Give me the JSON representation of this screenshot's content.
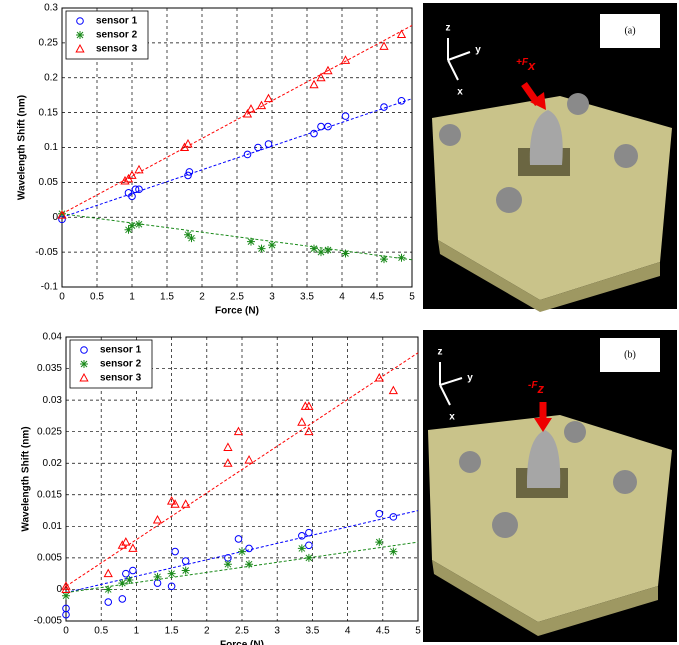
{
  "chart_data": [
    {
      "type": "scatter",
      "xlabel": "Force (N)",
      "ylabel": "Wavelength Shift (nm)",
      "xlim": [
        0,
        5
      ],
      "ylim": [
        -0.1,
        0.3
      ],
      "xticks": [
        0,
        0.5,
        1,
        1.5,
        2,
        2.5,
        3,
        3.5,
        4,
        4.5,
        5
      ],
      "yticks": [
        -0.1,
        -0.05,
        0,
        0.05,
        0.1,
        0.15,
        0.2,
        0.25,
        0.3
      ],
      "grid": true,
      "legend": "upper left",
      "series": [
        {
          "name": "sensor 1",
          "color": "#0000ff",
          "marker": "circle",
          "x": [
            0,
            0.95,
            1.0,
            1.05,
            1.1,
            1.8,
            1.82,
            2.65,
            2.8,
            2.95,
            3.6,
            3.7,
            3.8,
            4.05,
            4.6,
            4.85
          ],
          "values": [
            -0.003,
            0.035,
            0.03,
            0.04,
            0.04,
            0.06,
            0.065,
            0.09,
            0.1,
            0.105,
            0.12,
            0.13,
            0.13,
            0.145,
            0.158,
            0.167
          ],
          "trend": {
            "x": [
              0,
              5
            ],
            "values": [
              0,
              0.17
            ]
          }
        },
        {
          "name": "sensor 2",
          "color": "#1a8a1a",
          "marker": "star",
          "x": [
            0,
            0.95,
            1.0,
            1.1,
            1.8,
            1.85,
            2.7,
            2.85,
            3.0,
            3.6,
            3.7,
            3.8,
            4.05,
            4.6,
            4.85
          ],
          "values": [
            0.005,
            -0.018,
            -0.012,
            -0.01,
            -0.025,
            -0.03,
            -0.035,
            -0.045,
            -0.04,
            -0.045,
            -0.05,
            -0.047,
            -0.052,
            -0.06,
            -0.058
          ],
          "trend": {
            "x": [
              0,
              5
            ],
            "values": [
              0.005,
              -0.061
            ]
          }
        },
        {
          "name": "sensor 3",
          "color": "#ff0000",
          "marker": "triangle",
          "x": [
            0,
            0.9,
            0.95,
            1.0,
            1.1,
            1.75,
            1.8,
            2.65,
            2.7,
            2.85,
            2.95,
            3.6,
            3.7,
            3.8,
            4.05,
            4.6,
            4.85
          ],
          "values": [
            0.003,
            0.052,
            0.055,
            0.06,
            0.068,
            0.1,
            0.105,
            0.148,
            0.155,
            0.16,
            0.17,
            0.19,
            0.2,
            0.21,
            0.225,
            0.245,
            0.262
          ],
          "trend": {
            "x": [
              0,
              5
            ],
            "values": [
              0.005,
              0.275
            ]
          }
        }
      ]
    },
    {
      "type": "scatter",
      "xlabel": "Force (N)",
      "ylabel": "Wavelength Shift (nm)",
      "xlim": [
        0,
        5
      ],
      "ylim": [
        -0.005,
        0.04
      ],
      "xticks": [
        0,
        0.5,
        1,
        1.5,
        2,
        2.5,
        3,
        3.5,
        4,
        4.5,
        5
      ],
      "yticks": [
        -0.005,
        0,
        0.005,
        0.01,
        0.015,
        0.02,
        0.025,
        0.03,
        0.035,
        0.04
      ],
      "grid": true,
      "legend": "upper left",
      "series": [
        {
          "name": "sensor 1",
          "color": "#0000ff",
          "marker": "circle",
          "x": [
            0,
            0,
            0.6,
            0.8,
            0.85,
            0.95,
            1.3,
            1.5,
            1.55,
            1.7,
            2.3,
            2.45,
            2.6,
            3.35,
            3.45,
            3.45,
            4.45,
            4.65
          ],
          "values": [
            -0.004,
            -0.003,
            -0.002,
            -0.0015,
            0.0025,
            0.003,
            0.001,
            0.0005,
            0.006,
            0.0045,
            0.005,
            0.008,
            0.0065,
            0.0085,
            0.007,
            0.009,
            0.012,
            0.0115
          ],
          "trend": {
            "x": [
              0,
              5
            ],
            "values": [
              -0.0005,
              0.0125
            ]
          }
        },
        {
          "name": "sensor 2",
          "color": "#1a8a1a",
          "marker": "star",
          "x": [
            0,
            0.6,
            0.8,
            0.9,
            1.3,
            1.5,
            1.7,
            2.3,
            2.5,
            2.6,
            3.35,
            3.45,
            4.45,
            4.65
          ],
          "values": [
            -0.001,
            0,
            0.001,
            0.0015,
            0.002,
            0.0025,
            0.003,
            0.004,
            0.006,
            0.004,
            0.0065,
            0.005,
            0.0075,
            0.006
          ],
          "trend": {
            "x": [
              0,
              5
            ],
            "values": [
              -0.0005,
              0.0075
            ]
          }
        },
        {
          "name": "sensor 3",
          "color": "#ff0000",
          "marker": "triangle",
          "x": [
            0,
            0,
            0.6,
            0.8,
            0.85,
            0.95,
            1.3,
            1.5,
            1.55,
            1.7,
            2.3,
            2.3,
            2.45,
            2.6,
            3.35,
            3.4,
            3.45,
            3.45,
            4.45,
            4.65
          ],
          "values": [
            0,
            0.0005,
            0.0025,
            0.007,
            0.0075,
            0.0065,
            0.011,
            0.014,
            0.0135,
            0.0135,
            0.0225,
            0.02,
            0.025,
            0.0205,
            0.0265,
            0.029,
            0.029,
            0.025,
            0.0335,
            0.0315
          ],
          "trend": {
            "x": [
              0,
              5
            ],
            "values": [
              0.0005,
              0.0375
            ]
          }
        }
      ]
    }
  ],
  "photos": [
    {
      "label": "(a)",
      "force": "+F",
      "force_sub": "x",
      "axes": [
        "z",
        "y",
        "x"
      ]
    },
    {
      "label": "(b)",
      "force": "-F",
      "force_sub": "z",
      "axes": [
        "z",
        "y",
        "x"
      ]
    }
  ]
}
